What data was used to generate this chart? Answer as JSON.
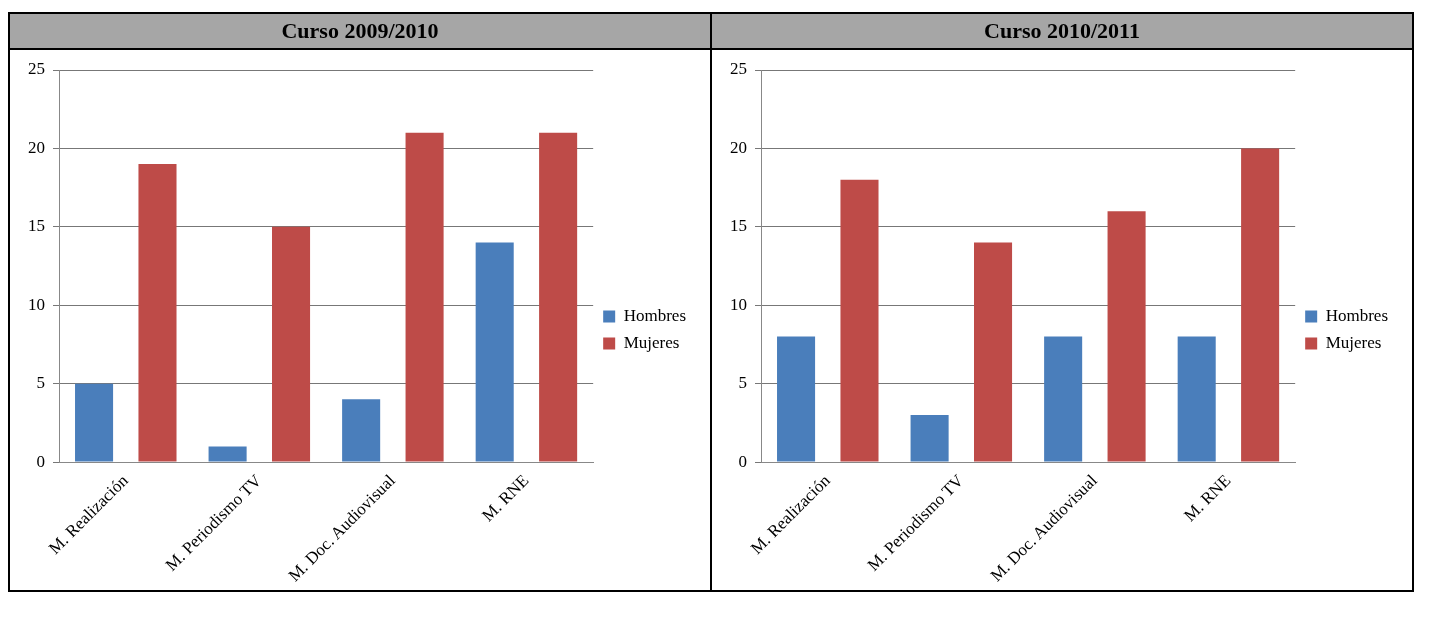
{
  "chart_data": [
    {
      "type": "bar",
      "title": "Curso 2009/2010",
      "categories": [
        "M. Realización",
        "M. Periodismo TV",
        "M. Doc. Audiovisual",
        "M. RNE"
      ],
      "series": [
        {
          "name": "Hombres",
          "color": "#4a7ebb",
          "values": [
            5,
            1,
            4,
            14
          ]
        },
        {
          "name": "Mujeres",
          "color": "#be4b48",
          "values": [
            19,
            15,
            21,
            21
          ]
        }
      ],
      "ylim": [
        0,
        25
      ],
      "yticks": [
        0,
        5,
        10,
        15,
        20,
        25
      ],
      "grid": "y",
      "legend": "right"
    },
    {
      "type": "bar",
      "title": "Curso 2010/2011",
      "categories": [
        "M. Realización",
        "M. Periodismo TV",
        "M. Doc. Audiovisual",
        "M. RNE"
      ],
      "series": [
        {
          "name": "Hombres",
          "color": "#4a7ebb",
          "values": [
            8,
            3,
            8,
            8
          ]
        },
        {
          "name": "Mujeres",
          "color": "#be4b48",
          "values": [
            18,
            14,
            16,
            20
          ]
        }
      ],
      "ylim": [
        0,
        25
      ],
      "yticks": [
        0,
        5,
        10,
        15,
        20,
        25
      ],
      "grid": "y",
      "legend": "right"
    }
  ]
}
